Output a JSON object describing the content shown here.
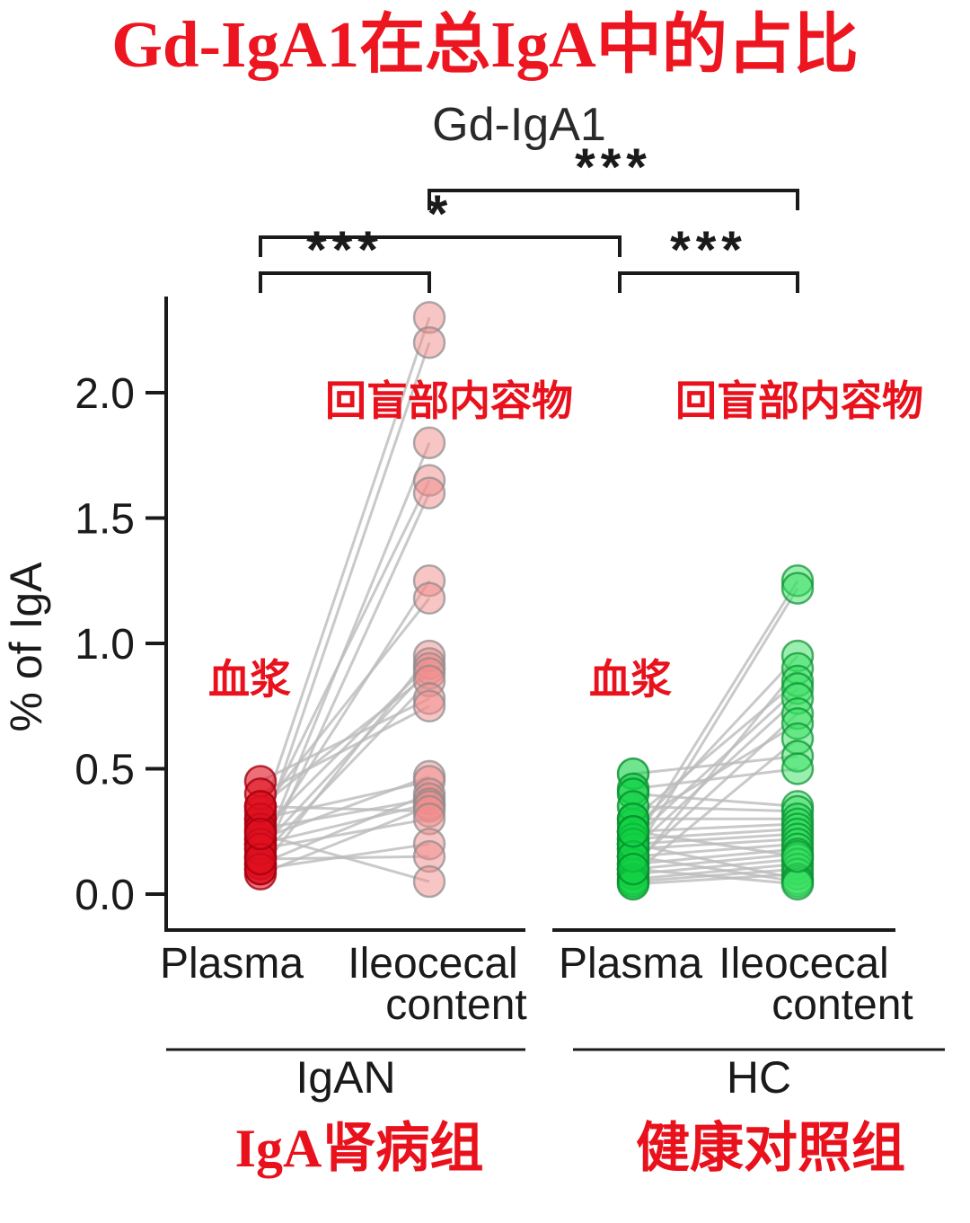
{
  "title_cn": "Gd-IgA1在总IgA中的占比",
  "chart_data": {
    "type": "paired-scatter",
    "title": "Gd-IgA1",
    "ylabel": "% of IgA",
    "ylim": [
      0,
      2.4
    ],
    "yticks": [
      0.0,
      0.5,
      1.0,
      1.5,
      2.0
    ],
    "line_color": "#bbbbbb",
    "x_tick_labels": {
      "plasma": "Plasma",
      "ileocecal_line1": "Ileocecal",
      "ileocecal_line2": "content"
    },
    "annotations": {
      "content_cn": "回盲部内容物",
      "plasma_cn": "血浆"
    },
    "significance": [
      {
        "label": "***",
        "comparison": "IgAN ileocecal content vs HC ileocecal content"
      },
      {
        "label": "*",
        "comparison": "IgAN vs HC"
      },
      {
        "label": "***",
        "comparison": "IgAN plasma vs IgAN ileocecal content"
      },
      {
        "label": "***",
        "comparison": "HC plasma vs HC ileocecal content"
      }
    ],
    "groups": [
      {
        "name": "IgAN",
        "label_cn": "IgA肾病组",
        "categories": [
          "Plasma",
          "Ileocecal content"
        ],
        "colors": {
          "plasma_fill": "#e01020",
          "plasma_stroke": "#a50010",
          "content_fill": "#f28c8c",
          "content_stroke": "#8a8a8a"
        },
        "pairs": [
          [
            0.3,
            2.3
          ],
          [
            0.22,
            2.2
          ],
          [
            0.15,
            1.8
          ],
          [
            0.28,
            1.65
          ],
          [
            0.12,
            1.6
          ],
          [
            0.2,
            1.25
          ],
          [
            0.33,
            1.18
          ],
          [
            0.1,
            0.95
          ],
          [
            0.25,
            0.92
          ],
          [
            0.18,
            0.9
          ],
          [
            0.35,
            0.88
          ],
          [
            0.15,
            0.85
          ],
          [
            0.45,
            0.78
          ],
          [
            0.4,
            0.75
          ],
          [
            0.22,
            0.47
          ],
          [
            0.3,
            0.45
          ],
          [
            0.12,
            0.4
          ],
          [
            0.26,
            0.38
          ],
          [
            0.2,
            0.36
          ],
          [
            0.08,
            0.35
          ],
          [
            0.35,
            0.33
          ],
          [
            0.18,
            0.3
          ],
          [
            0.1,
            0.2
          ],
          [
            0.14,
            0.15
          ],
          [
            0.24,
            0.05
          ]
        ]
      },
      {
        "name": "HC",
        "label_cn": "健康对照组",
        "categories": [
          "Plasma",
          "Ileocecal content"
        ],
        "colors": {
          "plasma_fill": "#12d245",
          "plasma_stroke": "#089030",
          "content_fill": "#35e060",
          "content_stroke": "#089030"
        },
        "pairs": [
          [
            0.2,
            1.25
          ],
          [
            0.15,
            1.22
          ],
          [
            0.25,
            0.95
          ],
          [
            0.1,
            0.9
          ],
          [
            0.3,
            0.85
          ],
          [
            0.22,
            0.82
          ],
          [
            0.18,
            0.78
          ],
          [
            0.12,
            0.72
          ],
          [
            0.28,
            0.68
          ],
          [
            0.08,
            0.62
          ],
          [
            0.48,
            0.55
          ],
          [
            0.42,
            0.5
          ],
          [
            0.4,
            0.35
          ],
          [
            0.35,
            0.33
          ],
          [
            0.3,
            0.3
          ],
          [
            0.25,
            0.28
          ],
          [
            0.22,
            0.26
          ],
          [
            0.2,
            0.24
          ],
          [
            0.18,
            0.22
          ],
          [
            0.15,
            0.2
          ],
          [
            0.12,
            0.18
          ],
          [
            0.1,
            0.16
          ],
          [
            0.08,
            0.14
          ],
          [
            0.06,
            0.12
          ],
          [
            0.05,
            0.1
          ],
          [
            0.04,
            0.08
          ],
          [
            0.2,
            0.06
          ],
          [
            0.15,
            0.05
          ],
          [
            0.1,
            0.04
          ],
          [
            0.25,
            0.15
          ]
        ]
      }
    ]
  }
}
